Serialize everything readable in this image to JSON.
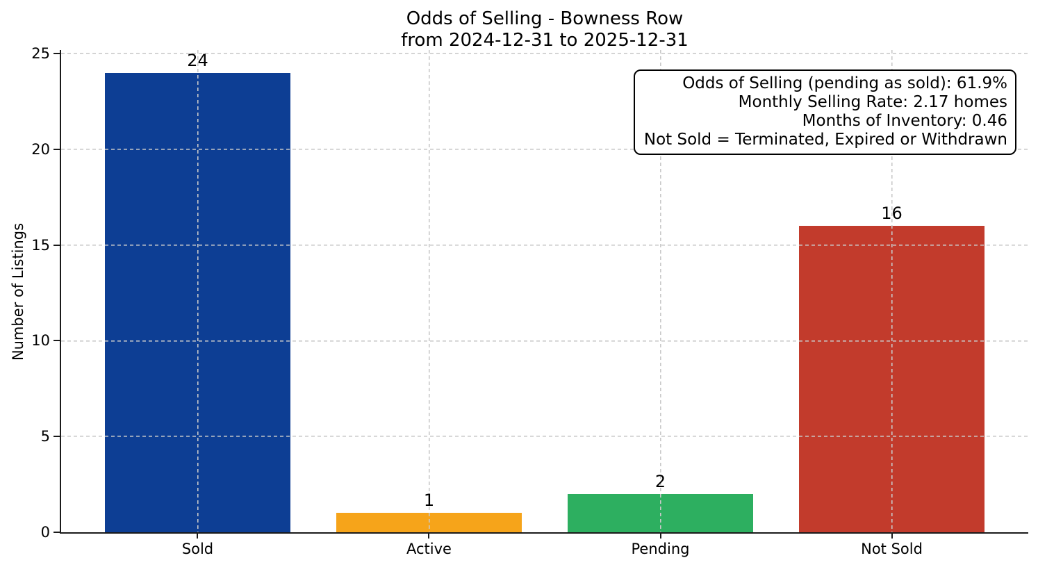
{
  "chart_data": {
    "type": "bar",
    "title_line1": "Odds of Selling - Bowness Row",
    "title_line2": "from 2024-12-31 to 2025-12-31",
    "ylabel": "Number of Listings",
    "xlabel": "",
    "categories": [
      "Sold",
      "Active",
      "Pending",
      "Not Sold"
    ],
    "values": [
      24,
      1,
      2,
      16
    ],
    "bar_colors": [
      "#0d3e94",
      "#f6a41a",
      "#2daf60",
      "#c23b2c"
    ],
    "yticks": [
      0,
      5,
      10,
      15,
      20,
      25
    ],
    "ylim": [
      0,
      25.18
    ],
    "grid": "dashed, drawn above bars",
    "legend": "none",
    "annotation_lines": [
      "Odds of Selling (pending as sold): 61.9%",
      "Monthly Selling Rate: 2.17 homes",
      "Months of Inventory: 0.46",
      "Not Sold = Terminated, Expired or Withdrawn"
    ]
  }
}
